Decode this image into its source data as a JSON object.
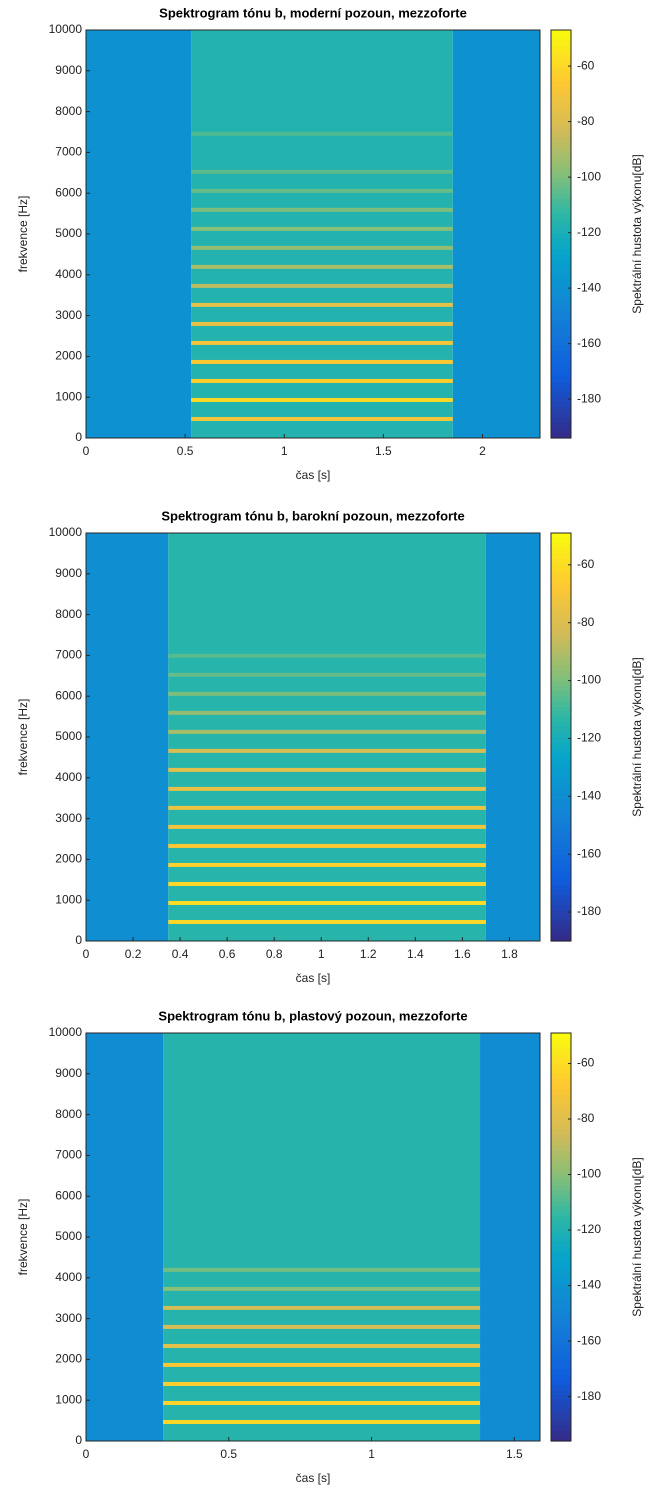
{
  "chart_data": [
    {
      "type": "heatmap",
      "title": "Spektrogram tónu b, moderní pozoun, mezzoforte",
      "xlabel": "čas [s]",
      "ylabel": "frekvence [Hz]",
      "colorbar_label": "Spektrální hustota výkonu[dB]",
      "xlim": [
        0,
        2.29
      ],
      "xticks": [
        0,
        0.5,
        1,
        1.5,
        2
      ],
      "ylim": [
        0,
        10000
      ],
      "yticks": [
        0,
        1000,
        2000,
        3000,
        4000,
        5000,
        6000,
        7000,
        8000,
        9000,
        10000
      ],
      "clim": [
        -194,
        -47
      ],
      "cticks": [
        -60,
        -80,
        -100,
        -120,
        -140,
        -160,
        -180
      ],
      "x": [
        0,
        0.53,
        1.85,
        2.29
      ],
      "background": [
        -140,
        -117,
        -140
      ],
      "harmonics": {
        "frequency": [
          466,
          932,
          1398,
          1864,
          2330,
          2796,
          3262,
          3728,
          4194,
          4660,
          5126,
          5592,
          6058,
          6524,
          7456
        ],
        "level": [
          -70,
          -60,
          -64,
          -66,
          -70,
          -74,
          -76,
          -88,
          -92,
          -96,
          -98,
          -100,
          -104,
          -106,
          -108
        ]
      }
    },
    {
      "type": "heatmap",
      "title": "Spektrogram tónu b, barokní pozoun, mezzoforte",
      "xlabel": "čas [s]",
      "ylabel": "frekvence [Hz]",
      "colorbar_label": "Spektrální hustota výkonu[dB]",
      "xlim": [
        0,
        1.93
      ],
      "xticks": [
        0,
        0.2,
        0.4,
        0.6,
        0.8,
        1,
        1.2,
        1.4,
        1.6,
        1.8
      ],
      "ylim": [
        0,
        10000
      ],
      "yticks": [
        0,
        1000,
        2000,
        3000,
        4000,
        5000,
        6000,
        7000,
        8000,
        9000,
        10000
      ],
      "clim": [
        -190,
        -49
      ],
      "cticks": [
        -60,
        -80,
        -100,
        -120,
        -140,
        -160,
        -180
      ],
      "x": [
        0,
        0.35,
        1.7,
        1.93
      ],
      "background": [
        -140,
        -115,
        -140
      ],
      "harmonics": {
        "frequency": [
          466,
          932,
          1398,
          1864,
          2330,
          2796,
          3262,
          3728,
          4194,
          4660,
          5126,
          5592,
          6058,
          6524,
          6990
        ],
        "level": [
          -62,
          -60,
          -62,
          -64,
          -68,
          -72,
          -74,
          -76,
          -78,
          -82,
          -92,
          -96,
          -100,
          -104,
          -106
        ]
      }
    },
    {
      "type": "heatmap",
      "title": "Spektrogram tónu b, plastový pozoun, mezzoforte",
      "xlabel": "čas [s]",
      "ylabel": "frekvence [Hz]",
      "colorbar_label": "Spektrální hustota výkonu[dB]",
      "xlim": [
        0,
        1.59
      ],
      "xticks": [
        0,
        0.5,
        1,
        1.5
      ],
      "ylim": [
        0,
        10000
      ],
      "yticks": [
        0,
        1000,
        2000,
        3000,
        4000,
        5000,
        6000,
        7000,
        8000,
        9000,
        10000
      ],
      "clim": [
        -196,
        -49
      ],
      "cticks": [
        -60,
        -80,
        -100,
        -120,
        -140,
        -160,
        -180
      ],
      "x": [
        0,
        0.27,
        1.38,
        1.59
      ],
      "background": [
        -145,
        -118,
        -145
      ],
      "harmonics": {
        "frequency": [
          466,
          932,
          1398,
          1864,
          2330,
          2796,
          3262,
          3728,
          4194
        ],
        "level": [
          -62,
          -64,
          -66,
          -70,
          -78,
          -84,
          -84,
          -100,
          -104
        ]
      }
    }
  ]
}
